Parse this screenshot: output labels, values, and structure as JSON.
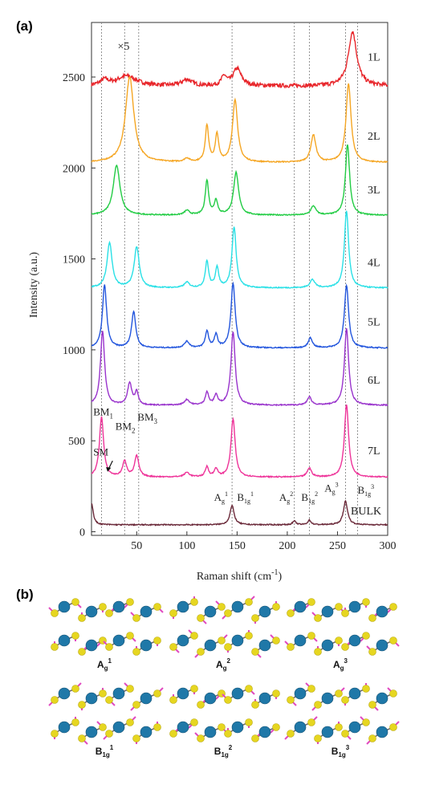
{
  "panels": {
    "a": "(a)",
    "b": "(b)"
  },
  "chart_data": {
    "type": "line",
    "xlabel": "Raman shift (cm",
    "xlabel_sup": "-1",
    "xlabel_end": ")",
    "ylabel": "Intensity (a.u.)",
    "xlim": [
      5,
      300
    ],
    "ylim": [
      -20,
      2800
    ],
    "xticks": [
      50,
      100,
      150,
      200,
      250,
      300
    ],
    "yticks": [
      0,
      500,
      1000,
      1500,
      2000,
      2500
    ],
    "multiplier_label": "×5",
    "mode_lines": [
      15,
      38,
      52,
      145,
      207,
      222,
      258,
      270
    ],
    "series": [
      {
        "name": "1L",
        "color": "#e8262b",
        "baseline": 2450,
        "label_y": 2590,
        "peaks": [
          [
            265,
            300,
            5
          ],
          [
            150,
            95,
            5
          ],
          [
            137,
            50,
            3
          ],
          [
            100,
            35,
            6
          ],
          [
            40,
            55,
            12
          ],
          [
            18,
            30,
            5
          ]
        ]
      },
      {
        "name": "2L",
        "color": "#f5a623",
        "baseline": 2030,
        "label_y": 2155,
        "peaks": [
          [
            43,
            470,
            5
          ],
          [
            148,
            345,
            3
          ],
          [
            261,
            430,
            3
          ],
          [
            120,
            200,
            2
          ],
          [
            130,
            150,
            2
          ],
          [
            226,
            150,
            3
          ],
          [
            100,
            20,
            3
          ]
        ]
      },
      {
        "name": "3L",
        "color": "#22cc44",
        "baseline": 1740,
        "label_y": 1860,
        "peaks": [
          [
            30,
            275,
            4
          ],
          [
            149,
            235,
            3
          ],
          [
            260,
            390,
            2.5
          ],
          [
            120,
            190,
            2
          ],
          [
            129,
            80,
            2
          ],
          [
            226,
            50,
            3
          ],
          [
            100,
            25,
            3
          ]
        ]
      },
      {
        "name": "4L",
        "color": "#29e0e6",
        "baseline": 1340,
        "label_y": 1460,
        "peaks": [
          [
            23,
            250,
            3
          ],
          [
            50,
            225,
            3
          ],
          [
            147,
            335,
            2.5
          ],
          [
            259,
            425,
            2.5
          ],
          [
            120,
            145,
            2
          ],
          [
            130,
            110,
            2
          ],
          [
            225,
            45,
            3
          ],
          [
            100,
            30,
            3
          ]
        ]
      },
      {
        "name": "5L",
        "color": "#2255dd",
        "baseline": 1010,
        "label_y": 1135,
        "peaks": [
          [
            18,
            345,
            2.5
          ],
          [
            47,
            200,
            2.5
          ],
          [
            146,
            355,
            2.5
          ],
          [
            259,
            345,
            2.5
          ],
          [
            120,
            90,
            2
          ],
          [
            129,
            70,
            2
          ],
          [
            223,
            55,
            2.5
          ],
          [
            100,
            35,
            3
          ]
        ]
      },
      {
        "name": "6L",
        "color": "#9933cc",
        "baseline": 695,
        "label_y": 815,
        "peaks": [
          [
            16,
            405,
            2.5
          ],
          [
            43,
            120,
            2.5
          ],
          [
            50,
            70,
            2
          ],
          [
            146,
            405,
            2.5
          ],
          [
            259,
            420,
            2.5
          ],
          [
            120,
            70,
            2
          ],
          [
            129,
            55,
            2
          ],
          [
            222,
            45,
            2.5
          ],
          [
            100,
            30,
            3
          ]
        ]
      },
      {
        "name": "7L",
        "color": "#ee3399",
        "baseline": 300,
        "label_y": 425,
        "peaks": [
          [
            15,
            330,
            2.5
          ],
          [
            38,
            85,
            2.5
          ],
          [
            50,
            115,
            2.5
          ],
          [
            146,
            320,
            2.5
          ],
          [
            259,
            400,
            2.5
          ],
          [
            120,
            55,
            2
          ],
          [
            129,
            45,
            2
          ],
          [
            222,
            50,
            2.5
          ],
          [
            100,
            25,
            3
          ]
        ]
      },
      {
        "name": "BULK",
        "color": "#6b2a3a",
        "baseline": 38,
        "label_y": 95,
        "peaks": [
          [
            5,
            120,
            2
          ],
          [
            145,
            105,
            2.5
          ],
          [
            258,
            130,
            2.5
          ],
          [
            207,
            20,
            2
          ],
          [
            222,
            25,
            2
          ]
        ]
      }
    ],
    "annotations": [
      {
        "text": "BM",
        "sub": "1",
        "x": 18,
        "y": 640
      },
      {
        "text": "BM",
        "sub": "2",
        "x": 40,
        "y": 560
      },
      {
        "text": "BM",
        "sub": "3",
        "x": 62,
        "y": 610
      },
      {
        "text": "SM",
        "x": 18,
        "y": 420
      }
    ],
    "mode_labels": [
      {
        "main": "A",
        "sub": "g",
        "sup": "1",
        "x": 135,
        "y": 170
      },
      {
        "main": "B",
        "sub": "1g",
        "sup": "1",
        "x": 158,
        "y": 170
      },
      {
        "main": "A",
        "sub": "g",
        "sup": "2",
        "x": 200,
        "y": 170
      },
      {
        "main": "B",
        "sub": "1g",
        "sup": "2",
        "x": 222,
        "y": 170
      },
      {
        "main": "A",
        "sub": "g",
        "sup": "3",
        "x": 245,
        "y": 220
      },
      {
        "main": "B",
        "sub": "1g",
        "sup": "3",
        "x": 278,
        "y": 210
      }
    ]
  },
  "mode_panels": [
    {
      "main": "A",
      "sub": "g",
      "sup": "1"
    },
    {
      "main": "A",
      "sub": "g",
      "sup": "2"
    },
    {
      "main": "A",
      "sub": "g",
      "sup": "3"
    },
    {
      "main": "B",
      "sub": "1g",
      "sup": "1"
    },
    {
      "main": "B",
      "sub": "1g",
      "sup": "2"
    },
    {
      "main": "B",
      "sub": "1g",
      "sup": "3"
    }
  ],
  "colors": {
    "sulfur": "#e6d620",
    "metal": "#1f78a8",
    "vector": "#e14ac0",
    "bond": "#6a6a6a"
  }
}
